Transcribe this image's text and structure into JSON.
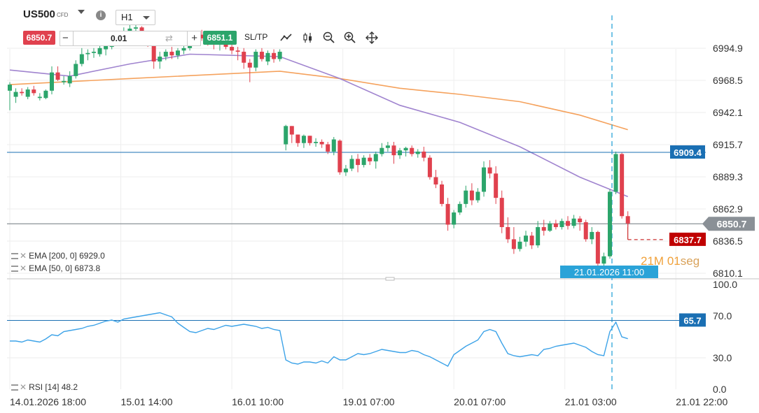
{
  "toolbar": {
    "symbol": "US500",
    "symbol_type": "CFD",
    "timeframe": "H1",
    "sell_price": "6850.7",
    "buy_price": "6851.1",
    "quantity": "0.01",
    "minus_label": "−",
    "plus_label": "+",
    "sltp_label": "SL/TP",
    "info_label": "i"
  },
  "indicators": {
    "ema200": "EMA [200, 0] 6929.0",
    "ema50": "EMA [50, 0] 6873.8",
    "rsi": "RSI [14] 48.2"
  },
  "countdown": {
    "minutes": "21M",
    "seconds": "01",
    "suffix": "seg"
  },
  "colors": {
    "bull": "#2ca56b",
    "bear": "#e0414e",
    "ema200": "#f5a25d",
    "ema50": "#a084cf",
    "rsi": "#3da3e8",
    "level": "#1a6fb3",
    "crosshair": "#2aa3d8",
    "current_price": "#8a9096",
    "pending_order": "#c00000"
  },
  "chart_data": [
    {
      "type": "candlestick",
      "ylim": [
        6810.1,
        7012
      ],
      "y_ticks": [
        "6994.9",
        "6968.5",
        "6942.1",
        "6915.7",
        "6889.3",
        "6862.9",
        "6836.5",
        "6810.1"
      ],
      "x_ticks": [
        "14.01.2026 18:00",
        "15.01 14:00",
        "16.01 10:00",
        "19.01 07:00",
        "20.01 07:00",
        "21.01 03:00",
        "21.01 22:00"
      ],
      "candles": [
        [
          0,
          6960,
          6967,
          6944,
          6965
        ],
        [
          1,
          6955,
          6962,
          6950,
          6959
        ],
        [
          2,
          6959,
          6962,
          6956,
          6958
        ],
        [
          3,
          6955,
          6963,
          6953,
          6961
        ],
        [
          4,
          6961,
          6964,
          6956,
          6958
        ],
        [
          5,
          6954,
          6958,
          6952,
          6955
        ],
        [
          6,
          6954,
          6961,
          6953,
          6960
        ],
        [
          7,
          6960,
          6980,
          6957,
          6975
        ],
        [
          8,
          6975,
          6980,
          6968,
          6969
        ],
        [
          9,
          6967,
          6972,
          6965,
          6968
        ],
        [
          10,
          6966,
          6976,
          6963,
          6972
        ],
        [
          11,
          6972,
          6985,
          6970,
          6982
        ],
        [
          12,
          6982,
          6995,
          6980,
          6990
        ],
        [
          13,
          6990,
          6994,
          6985,
          6991
        ],
        [
          14,
          6991,
          6995,
          6987,
          6992
        ],
        [
          15,
          6990,
          6997,
          6988,
          6995
        ],
        [
          16,
          6994,
          6998,
          6989,
          6997
        ],
        [
          17,
          6996,
          7004,
          6994,
          7003
        ],
        [
          18,
          7003,
          7009,
          7000,
          7006
        ],
        [
          19,
          7006,
          7012,
          7004,
          7009
        ],
        [
          20,
          7009,
          7014,
          7007,
          7011
        ],
        [
          21,
          7011,
          7015,
          7008,
          7012
        ],
        [
          22,
          7012,
          7013,
          7002,
          7004
        ],
        [
          23,
          7004,
          7006,
          6996,
          7000
        ],
        [
          24,
          6998,
          7000,
          6978,
          6984
        ],
        [
          25,
          6984,
          6992,
          6978,
          6988
        ],
        [
          26,
          6988,
          6994,
          6985,
          6992
        ],
        [
          27,
          6992,
          6996,
          6986,
          6989
        ],
        [
          28,
          6989,
          6995,
          6986,
          6993
        ],
        [
          29,
          6993,
          6998,
          6990,
          6995
        ],
        [
          30,
          6995,
          7004,
          6993,
          7002
        ],
        [
          31,
          7002,
          7008,
          7000,
          7006
        ],
        [
          32,
          7006,
          7010,
          7001,
          7003
        ],
        [
          33,
          7003,
          7006,
          6997,
          7000
        ],
        [
          34,
          7000,
          7004,
          6994,
          6998
        ],
        [
          35,
          6998,
          7002,
          6993,
          7000
        ],
        [
          36,
          7000,
          7003,
          6994,
          6996
        ],
        [
          37,
          6996,
          7000,
          6990,
          6993
        ],
        [
          38,
          6993,
          6996,
          6985,
          6992
        ],
        [
          39,
          6992,
          6995,
          6978,
          6983
        ],
        [
          40,
          6983,
          6986,
          6967,
          6979
        ],
        [
          41,
          6979,
          6994,
          6976,
          6992
        ],
        [
          42,
          6992,
          6995,
          6984,
          6986
        ],
        [
          43,
          6984,
          6993,
          6981,
          6991
        ],
        [
          44,
          6991,
          6994,
          6983,
          6986
        ],
        [
          45,
          6986,
          6994,
          6984,
          6992
        ],
        [
          46,
          6916,
          6932,
          6911,
          6931
        ],
        [
          47,
          6931,
          6931,
          6917,
          6924
        ],
        [
          48,
          6924,
          6924,
          6914,
          6917
        ],
        [
          49,
          6917,
          6924,
          6913,
          6923
        ],
        [
          50,
          6923,
          6923,
          6915,
          6917
        ],
        [
          51,
          6917,
          6921,
          6914,
          6918
        ],
        [
          52,
          6918,
          6920,
          6913,
          6916
        ],
        [
          53,
          6916,
          6918,
          6908,
          6910
        ],
        [
          54,
          6910,
          6922,
          6907,
          6920
        ],
        [
          55,
          6919,
          6920,
          6891,
          6893
        ],
        [
          56,
          6893,
          6899,
          6890,
          6896
        ],
        [
          57,
          6896,
          6907,
          6894,
          6904
        ],
        [
          58,
          6904,
          6908,
          6893,
          6899
        ],
        [
          59,
          6899,
          6907,
          6897,
          6905
        ],
        [
          60,
          6905,
          6908,
          6899,
          6902
        ],
        [
          61,
          6902,
          6910,
          6896,
          6908
        ],
        [
          62,
          6908,
          6917,
          6906,
          6913
        ],
        [
          63,
          6913,
          6918,
          6910,
          6915
        ],
        [
          64,
          6915,
          6918,
          6900,
          6907
        ],
        [
          65,
          6907,
          6913,
          6904,
          6911
        ],
        [
          66,
          6911,
          6914,
          6906,
          6913
        ],
        [
          67,
          6913,
          6915,
          6906,
          6908
        ],
        [
          68,
          6908,
          6912,
          6905,
          6910
        ],
        [
          69,
          6910,
          6914,
          6902,
          6905
        ],
        [
          70,
          6905,
          6907,
          6887,
          6889
        ],
        [
          71,
          6889,
          6895,
          6880,
          6883
        ],
        [
          72,
          6883,
          6886,
          6865,
          6867
        ],
        [
          73,
          6867,
          6872,
          6845,
          6850
        ],
        [
          74,
          6850,
          6862,
          6847,
          6860
        ],
        [
          75,
          6860,
          6869,
          6858,
          6867
        ],
        [
          76,
          6867,
          6882,
          6864,
          6878
        ],
        [
          77,
          6878,
          6884,
          6866,
          6870
        ],
        [
          78,
          6870,
          6880,
          6868,
          6877
        ],
        [
          79,
          6877,
          6902,
          6873,
          6897
        ],
        [
          80,
          6897,
          6903,
          6888,
          6892
        ],
        [
          81,
          6892,
          6898,
          6867,
          6872
        ],
        [
          82,
          6872,
          6878,
          6843,
          6848
        ],
        [
          83,
          6848,
          6856,
          6835,
          6838
        ],
        [
          84,
          6838,
          6848,
          6826,
          6830
        ],
        [
          85,
          6830,
          6840,
          6828,
          6836
        ],
        [
          86,
          6836,
          6845,
          6832,
          6841
        ],
        [
          87,
          6841,
          6844,
          6830,
          6833
        ],
        [
          88,
          6833,
          6853,
          6831,
          6848
        ],
        [
          89,
          6848,
          6854,
          6841,
          6845
        ],
        [
          90,
          6845,
          6853,
          6844,
          6851
        ],
        [
          91,
          6851,
          6854,
          6846,
          6848
        ],
        [
          92,
          6848,
          6855,
          6846,
          6853
        ],
        [
          93,
          6853,
          6857,
          6846,
          6849
        ],
        [
          94,
          6849,
          6858,
          6847,
          6855
        ],
        [
          95,
          6855,
          6857,
          6845,
          6852
        ],
        [
          96,
          6852,
          6854,
          6836,
          6838
        ],
        [
          97,
          6838,
          6848,
          6834,
          6844
        ],
        [
          98,
          6844,
          6845,
          6815,
          6818
        ],
        [
          99,
          6818,
          6827,
          6816,
          6824
        ],
        [
          100,
          6824,
          6879,
          6822,
          6877
        ],
        [
          101,
          6877,
          6910,
          6875,
          6908
        ],
        [
          102,
          6908,
          6909,
          6855,
          6857
        ],
        [
          103,
          6857,
          6861,
          6848,
          6851
        ]
      ],
      "ema200": [
        [
          0,
          6965
        ],
        [
          20,
          6970
        ],
        [
          45,
          6976
        ],
        [
          55,
          6970
        ],
        [
          65,
          6962
        ],
        [
          75,
          6957
        ],
        [
          85,
          6951
        ],
        [
          95,
          6940
        ],
        [
          103,
          6928
        ]
      ],
      "ema50": [
        [
          0,
          6977
        ],
        [
          10,
          6972
        ],
        [
          20,
          6982
        ],
        [
          30,
          6990
        ],
        [
          45,
          6988
        ],
        [
          55,
          6970
        ],
        [
          65,
          6948
        ],
        [
          75,
          6934
        ],
        [
          85,
          6914
        ],
        [
          95,
          6889
        ],
        [
          103,
          6873
        ]
      ],
      "levels": [
        {
          "price": 6909.4,
          "label": "6909.4"
        },
        {
          "price": 6850.7,
          "label": "6850.7"
        },
        {
          "price": 6837.7,
          "label": "6837.7"
        }
      ],
      "crosshair_label": "21.01.2026 11:00",
      "crosshair_index": 100
    },
    {
      "type": "line",
      "title": "RSI [14] 48.2",
      "ylim": [
        0,
        100
      ],
      "y_ticks": [
        "100.0",
        "70.0",
        "30.0",
        "0.0"
      ],
      "level": {
        "value": 65.7,
        "label": "65.7"
      },
      "values": [
        46,
        46,
        45,
        47,
        46,
        45,
        48,
        52,
        51,
        55,
        56,
        57,
        58,
        60,
        61,
        63,
        65,
        66,
        64,
        67,
        68,
        69,
        70,
        71,
        72,
        73,
        71,
        69,
        63,
        59,
        55,
        54,
        56,
        58,
        57,
        59,
        61,
        60,
        61,
        62,
        61,
        60,
        58,
        59,
        57,
        56,
        28,
        25,
        24,
        26,
        26,
        25,
        27,
        25,
        31,
        28,
        28,
        31,
        34,
        33,
        34,
        36,
        38,
        37,
        36,
        35,
        35,
        37,
        36,
        33,
        31,
        28,
        25,
        22,
        33,
        37,
        41,
        44,
        47,
        55,
        57,
        55,
        44,
        34,
        32,
        31,
        32,
        33,
        32,
        38,
        39,
        41,
        42,
        43,
        44,
        42,
        40,
        36,
        33,
        32,
        55,
        64,
        50,
        48.2
      ]
    }
  ]
}
